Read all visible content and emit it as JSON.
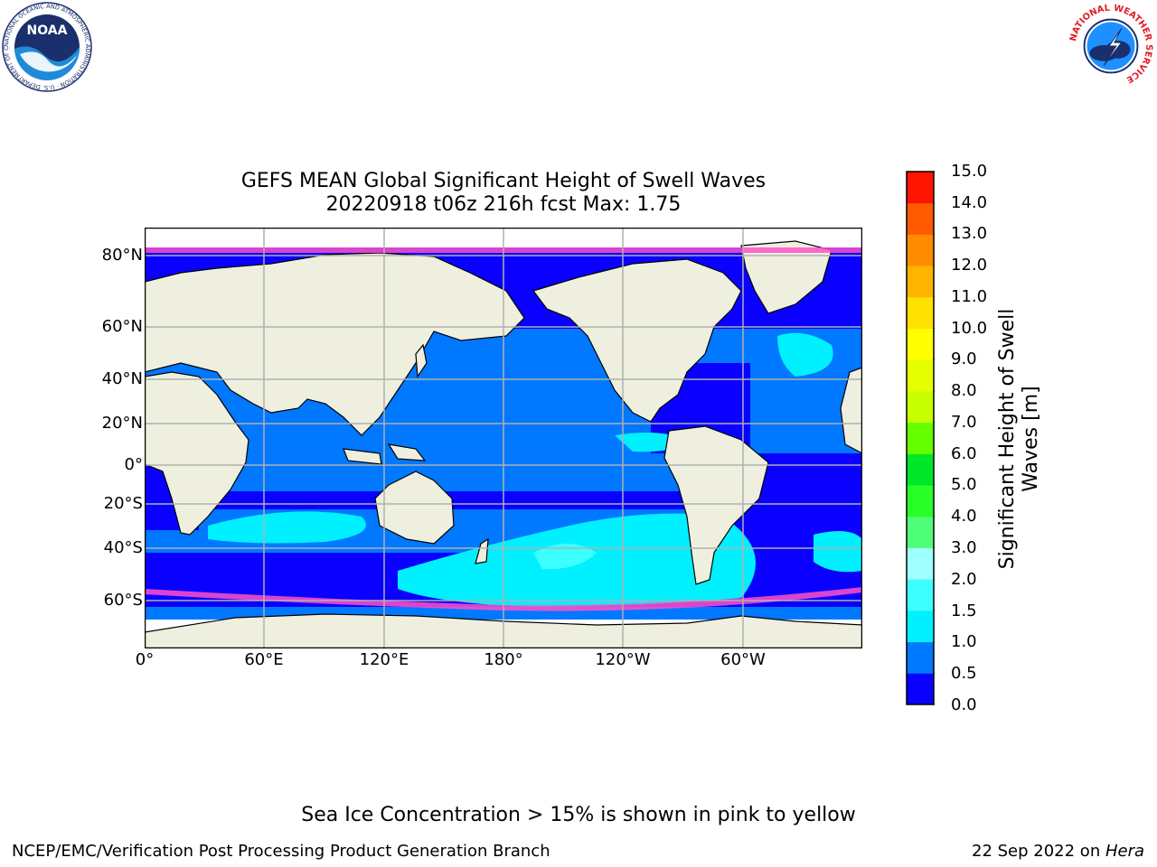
{
  "title_line1": "GEFS MEAN Global Significant Height of Swell Waves",
  "title_line2": "20220918 t06z 216h fcst   Max: 1.75",
  "lat_labels": [
    "80°N",
    "60°N",
    "40°N",
    "20°N",
    "0°",
    "20°S",
    "40°S",
    "60°S"
  ],
  "lon_labels": [
    "0°",
    "60°E",
    "120°E",
    "180°",
    "120°W",
    "60°W"
  ],
  "colorbar": {
    "title_line1": "Significant Height of Swell",
    "title_line2": "Waves [m]",
    "ticks": [
      "0.0",
      "0.5",
      "1.0",
      "1.5",
      "2.0",
      "3.0",
      "4.0",
      "5.0",
      "6.0",
      "7.0",
      "8.0",
      "9.0",
      "10.0",
      "11.0",
      "12.0",
      "13.0",
      "14.0",
      "15.0"
    ],
    "colors": [
      "#0a00ff",
      "#0078ff",
      "#00f0ff",
      "#3cffff",
      "#a0ffff",
      "#50ff78",
      "#28ff28",
      "#00e628",
      "#64ff00",
      "#c8ff00",
      "#e6ff00",
      "#ffff00",
      "#ffe100",
      "#ffb400",
      "#ff8c00",
      "#ff5a00",
      "#ff1400"
    ]
  },
  "map_colors": {
    "land": "#efefdf",
    "swell_low": "#0a00ff",
    "swell_mid": "#0078ff",
    "swell_high": "#00f0ff",
    "swell_peak": "#3cffff",
    "sea_ice": "#ff50c8",
    "grid": "#b0b0b0"
  },
  "sea_ice_note": "Sea Ice Concentration > 15% is shown in pink to yellow",
  "footer_left": "NCEP/EMC/Verification Post Processing Product Generation Branch",
  "footer_right_date": "22 Sep 2022 on ",
  "footer_right_host": "Hera",
  "logos": {
    "left": {
      "name": "noaa-logo",
      "text": "NOAA",
      "ring": "NATIONAL OCEANIC AND ATMOSPHERIC ADMINISTRATION · U.S. DEPARTMENT OF COMMERCE"
    },
    "right": {
      "name": "nws-logo",
      "ring": "NATIONAL WEATHER SERVICE"
    }
  }
}
